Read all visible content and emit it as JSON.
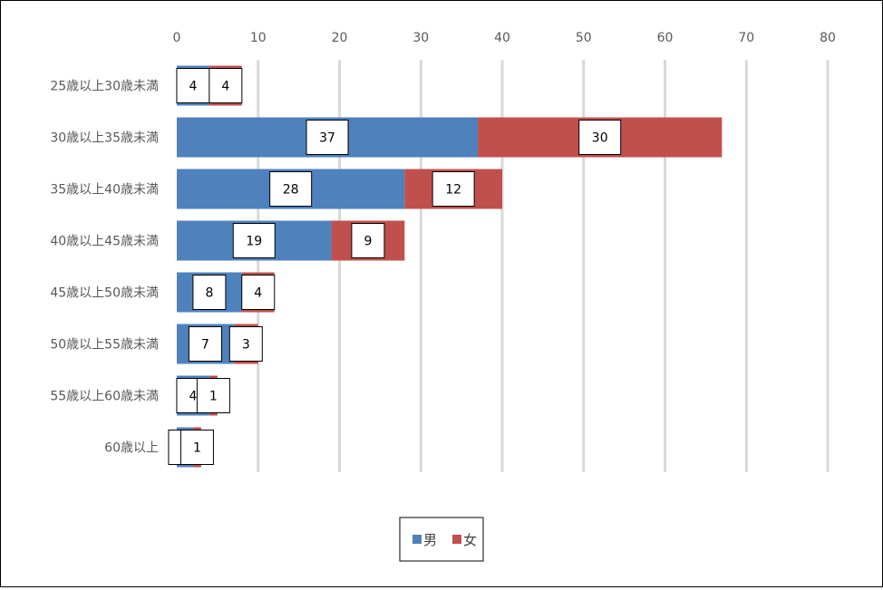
{
  "chart_data": {
    "type": "bar",
    "orientation": "horizontal",
    "stacked": true,
    "categories": [
      "25歳以上30歳未満",
      "30歳以上35歳未満",
      "35歳以上40歳未満",
      "40歳以上45歳未満",
      "45歳以上50歳未満",
      "50歳以上55歳未満",
      "55歳以上60歳未満",
      "60歳以上"
    ],
    "series": [
      {
        "name": "男",
        "values": [
          4,
          37,
          28,
          19,
          8,
          7,
          4,
          2
        ],
        "color": "#4F81BD"
      },
      {
        "name": "女",
        "values": [
          4,
          30,
          12,
          9,
          4,
          3,
          1,
          1
        ],
        "color": "#C0504D"
      }
    ],
    "data_labels": [
      [
        "4",
        "37",
        "28",
        "19",
        "8",
        "7",
        "4",
        ""
      ],
      [
        "4",
        "30",
        "12",
        "9",
        "4",
        "3",
        "1",
        "1"
      ]
    ],
    "xlim": [
      0,
      80
    ],
    "xticks": [
      "0",
      "10",
      "20",
      "30",
      "40",
      "50",
      "60",
      "70",
      "80"
    ],
    "grid": true,
    "legend_position": "bottom"
  }
}
